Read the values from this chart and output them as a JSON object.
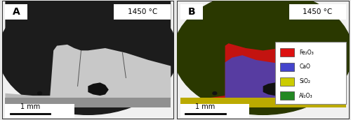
{
  "fig_width": 5.0,
  "fig_height": 1.72,
  "dpi": 100,
  "panel_A": {
    "label": "A",
    "temp_label": "1450 °C",
    "scale_bar_text": "1 mm",
    "outer_bg": "#ffffff",
    "circle_dark": "#1a1a1a",
    "sample_light": "#d0d0d0",
    "sample_dark_upper": "#4a4a4a",
    "lower_strip": "#888888"
  },
  "panel_B": {
    "label": "B",
    "temp_label": "1450 °C",
    "scale_bar_text": "1 mm",
    "circle_dark": "#2a3800",
    "red_color": "#cc1111",
    "blue_color": "#5555cc",
    "yellow_color": "#bbaa00",
    "green_dark": "#2a3800"
  },
  "legend": {
    "items": [
      "Fe₂O₃",
      "CaO",
      "SiO₂",
      "Al₂O₃"
    ],
    "colors": [
      "#dd1111",
      "#4444cc",
      "#cccc00",
      "#228822"
    ]
  },
  "outer_border": "#444444"
}
